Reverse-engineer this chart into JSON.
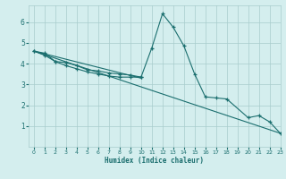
{
  "xlabel": "Humidex (Indice chaleur)",
  "bg_color": "#d4eeee",
  "grid_color": "#a8cccc",
  "line_color": "#1a6e6e",
  "x_data": [
    0,
    1,
    2,
    3,
    4,
    5,
    6,
    7,
    8,
    9,
    10,
    11,
    12,
    13,
    14,
    15,
    16,
    17,
    18,
    19,
    20,
    21,
    22,
    23
  ],
  "series1": [
    4.6,
    4.5,
    4.1,
    4.05,
    3.9,
    3.7,
    3.65,
    3.55,
    3.5,
    3.45,
    3.35,
    4.75,
    6.4,
    5.75,
    4.85,
    3.5,
    2.4,
    2.35,
    2.3,
    null,
    1.4,
    1.5,
    1.2,
    0.65
  ],
  "series2_x": [
    0,
    1,
    2,
    3,
    4,
    5,
    6,
    7,
    8,
    9,
    10
  ],
  "series2_y": [
    4.6,
    4.4,
    4.1,
    3.9,
    3.75,
    3.6,
    3.5,
    3.4,
    3.35,
    3.35,
    3.35
  ],
  "trend1_x": [
    0,
    23
  ],
  "trend1_y": [
    4.6,
    0.65
  ],
  "trend2_x": [
    0,
    10
  ],
  "trend2_y": [
    4.6,
    3.3
  ],
  "ylim": [
    0,
    6.8
  ],
  "xlim": [
    -0.5,
    23
  ],
  "yticks": [
    1,
    2,
    3,
    4,
    5,
    6
  ],
  "xticks": [
    0,
    1,
    2,
    3,
    4,
    5,
    6,
    7,
    8,
    9,
    10,
    11,
    12,
    13,
    14,
    15,
    16,
    17,
    18,
    19,
    20,
    21,
    22,
    23
  ]
}
